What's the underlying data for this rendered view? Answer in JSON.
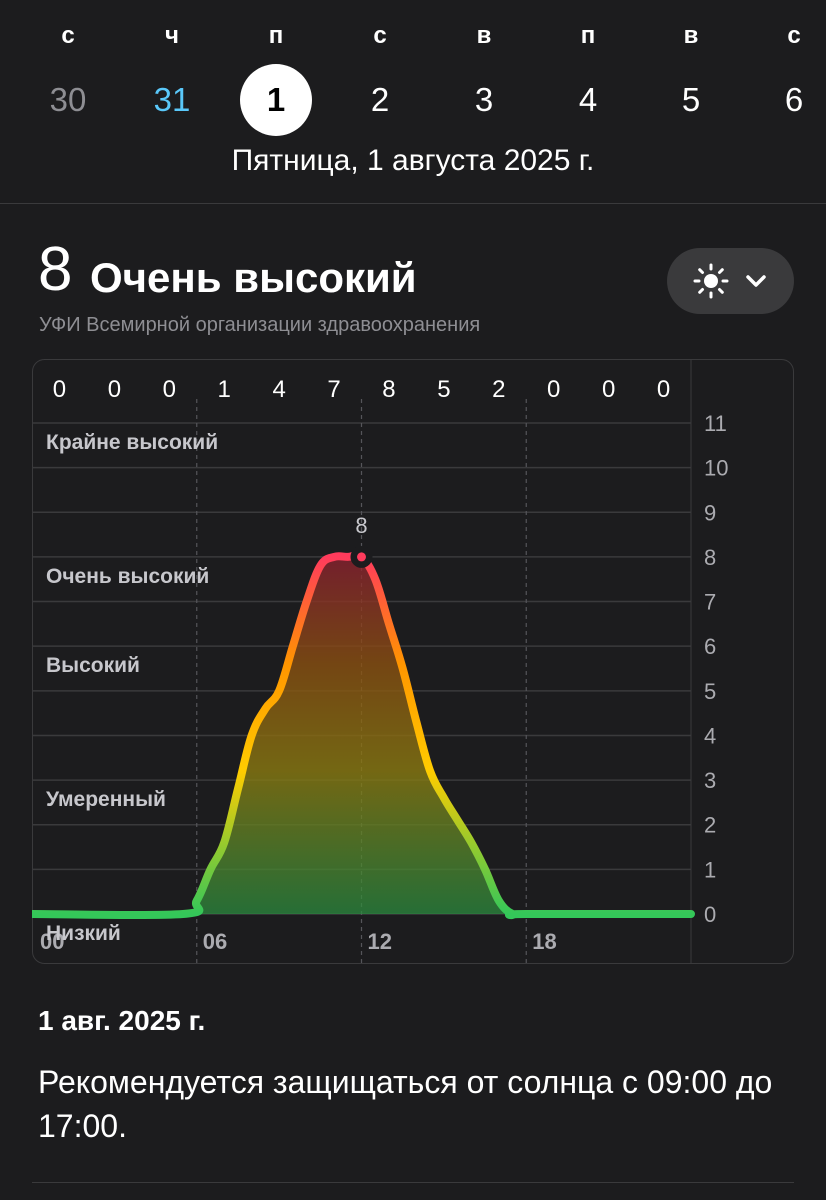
{
  "week": {
    "days": [
      {
        "letter": "с",
        "number": "30",
        "state": "past"
      },
      {
        "letter": "ч",
        "number": "31",
        "state": "today"
      },
      {
        "letter": "п",
        "number": "1",
        "state": "selected"
      },
      {
        "letter": "с",
        "number": "2",
        "state": "future"
      },
      {
        "letter": "в",
        "number": "3",
        "state": "future"
      },
      {
        "letter": "п",
        "number": "4",
        "state": "future"
      },
      {
        "letter": "в",
        "number": "5",
        "state": "future"
      },
      {
        "letter": "с",
        "number": "6",
        "state": "future"
      }
    ],
    "selected_date": "Пятница, 1 августа 2025 г."
  },
  "uv": {
    "value": "8",
    "category": "Очень высокий",
    "source": "УФИ Всемирной организации здравоохранения"
  },
  "dropdown": {
    "icon": "sun-icon",
    "chevron": "chevron-down-icon"
  },
  "chart_data": {
    "type": "area",
    "hourly_values_top": [
      "0",
      "0",
      "0",
      "1",
      "4",
      "7",
      "8",
      "5",
      "2",
      "0",
      "0",
      "0"
    ],
    "x_tick_labels": [
      "00",
      "06",
      "12",
      "18"
    ],
    "y_tick_labels": [
      "0",
      "1",
      "2",
      "3",
      "4",
      "5",
      "6",
      "7",
      "8",
      "9",
      "10",
      "11"
    ],
    "ylim": [
      0,
      11
    ],
    "category_labels": [
      {
        "label": "Крайне высокий",
        "level": 11
      },
      {
        "label": "Очень высокий",
        "level": 8
      },
      {
        "label": "Высокий",
        "level": 6
      },
      {
        "label": "Умеренный",
        "level": 3
      },
      {
        "label": "Низкий",
        "level": 0
      }
    ],
    "series": [
      {
        "x": [
          0,
          5.5,
          6,
          6.5,
          7,
          7.5,
          8,
          8.5,
          9,
          9.5,
          10,
          10.5,
          11,
          11.5,
          12,
          12.5,
          13,
          13.5,
          14,
          14.5,
          15,
          15.5,
          16,
          16.5,
          17,
          17.5,
          18,
          24
        ],
        "y": [
          0,
          0,
          0.3,
          1.0,
          1.6,
          2.8,
          4.0,
          4.6,
          5.0,
          6.0,
          7.0,
          7.8,
          8.0,
          8.0,
          8.0,
          7.5,
          6.5,
          5.5,
          4.3,
          3.2,
          2.6,
          2.1,
          1.6,
          1.0,
          0.3,
          0,
          0,
          0
        ]
      }
    ],
    "current": {
      "x": 12,
      "y": 8,
      "label": "8"
    },
    "colors": {
      "low": "#34c759",
      "moderate": "#ffcc00",
      "high": "#ff9500",
      "very_high": "#ff3b5c"
    }
  },
  "footer": {
    "date": "1 авг. 2025 г.",
    "recommendation": "Рекомендуется защищаться от солнца с 09:00 до 17:00."
  }
}
